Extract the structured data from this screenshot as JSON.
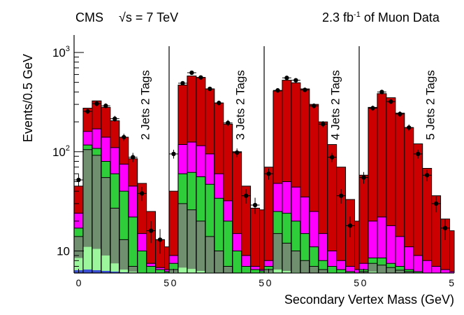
{
  "header": {
    "experiment": "CMS",
    "energy": "√s = 7 TeV",
    "lumi_value": "2.3 fb",
    "lumi_exp": "-1",
    "lumi_rest": " of Muon Data"
  },
  "chart_data": {
    "type": "stacked-histogram",
    "xlabel": "Secondary Vertex Mass (GeV)",
    "ylabel": "Events/0.5 GeV",
    "yscale": "log",
    "ylim": [
      6,
      1500
    ],
    "y_ticks": [
      {
        "value": 10,
        "base": "10",
        "exp": ""
      },
      {
        "value": 100,
        "base": "10",
        "exp": "2"
      },
      {
        "value": 1000,
        "base": "10",
        "exp": "3"
      }
    ],
    "x_range": [
      -0.25,
      5
    ],
    "x_tick_labels": [
      "0",
      "5"
    ],
    "bin_width": 0.5,
    "component_colors": [
      "#3a4fd4",
      "#9cf79c",
      "#6f8f6f",
      "#2fcd3a",
      "#ff00ff",
      "#cc0000"
    ],
    "panels": [
      {
        "label": "2 Jets 2 Tags",
        "bin_edges": [
          -0.25,
          0.25,
          0.75,
          1.25,
          1.75,
          2.25,
          2.75,
          3.25,
          3.75,
          4.25,
          4.75,
          5.0
        ],
        "stack_tops": [
          [
            6.4,
            6.5,
            6.4,
            6.3,
            6.2,
            6.1,
            6.0,
            6.0,
            6.0,
            6.0,
            6.0
          ],
          [
            8.5,
            11,
            10.5,
            9,
            7.5,
            6.5,
            6.2,
            6.0,
            6.0,
            6.0,
            6.0
          ],
          [
            14,
            105,
            92,
            55,
            27,
            13,
            7,
            6.0,
            6.0,
            6.0,
            6.0
          ],
          [
            17,
            117,
            108,
            80,
            60,
            40,
            22,
            10,
            7,
            6.5,
            6.2
          ],
          [
            24,
            160,
            170,
            140,
            110,
            75,
            45,
            15,
            7.5,
            6.8,
            6.5
          ],
          [
            45,
            275,
            325,
            280,
            205,
            140,
            85,
            48,
            25,
            13,
            11
          ]
        ],
        "data": [
          {
            "x": 0.0,
            "y": 52
          },
          {
            "x": 0.5,
            "y": 255
          },
          {
            "x": 1.0,
            "y": 305
          },
          {
            "x": 1.5,
            "y": 290
          },
          {
            "x": 2.0,
            "y": 215
          },
          {
            "x": 2.5,
            "y": 140
          },
          {
            "x": 3.0,
            "y": 88
          },
          {
            "x": 3.5,
            "y": 38
          },
          {
            "x": 4.0,
            "y": 16
          },
          {
            "x": 4.5,
            "y": 13
          }
        ]
      },
      {
        "label": "3 Jets 2 Tags",
        "bin_edges": [
          -0.25,
          0.25,
          0.75,
          1.25,
          1.75,
          2.25,
          2.75,
          3.25,
          3.75,
          4.25,
          4.75,
          5.0
        ],
        "stack_tops": [
          [
            6.0,
            6.0,
            6.0,
            6.0,
            6.0,
            6.0,
            6.0,
            6.0,
            6.0,
            6.0,
            6.0
          ],
          [
            6.1,
            6.8,
            6.6,
            6.3,
            6.1,
            6.0,
            6.0,
            6.0,
            6.0,
            6.0,
            6.0
          ],
          [
            6.5,
            30,
            26,
            20,
            14,
            10,
            7,
            6.0,
            6.0,
            6.0,
            6.0
          ],
          [
            7.5,
            60,
            62,
            56,
            47,
            34,
            20,
            10,
            7,
            6.5,
            6.3
          ],
          [
            9,
            118,
            125,
            115,
            95,
            60,
            32,
            15,
            9,
            7,
            6.5
          ],
          [
            40,
            470,
            580,
            560,
            430,
            310,
            190,
            100,
            45,
            27,
            26
          ]
        ],
        "data": [
          {
            "x": 0.0,
            "y": 95
          },
          {
            "x": 0.5,
            "y": 490
          },
          {
            "x": 1.0,
            "y": 625
          },
          {
            "x": 1.5,
            "y": 560
          },
          {
            "x": 2.0,
            "y": 430
          },
          {
            "x": 2.5,
            "y": 310
          },
          {
            "x": 3.0,
            "y": 195
          },
          {
            "x": 3.5,
            "y": 98
          },
          {
            "x": 4.0,
            "y": 36
          },
          {
            "x": 4.5,
            "y": 29
          }
        ]
      },
      {
        "label": "4 Jets 2 Tags",
        "bin_edges": [
          -0.25,
          0.25,
          0.75,
          1.25,
          1.75,
          2.25,
          2.75,
          3.25,
          3.75,
          4.25,
          4.75,
          5.0
        ],
        "stack_tops": [
          [
            6.0,
            6.0,
            6.0,
            6.0,
            6.0,
            6.0,
            6.0,
            6.0,
            6.0,
            6.0,
            6.0
          ],
          [
            6.1,
            6.5,
            6.3,
            6.1,
            6.0,
            6.0,
            6.0,
            6.0,
            6.0,
            6.0,
            6.0
          ],
          [
            6.5,
            15,
            12,
            10,
            8,
            7,
            6.5,
            6.0,
            6.0,
            6.0,
            6.0
          ],
          [
            7,
            25,
            24,
            20,
            15,
            11,
            8,
            7,
            6.5,
            6.2,
            6.0
          ],
          [
            8,
            48,
            50,
            44,
            35,
            25,
            15,
            10,
            8,
            7,
            6.5
          ],
          [
            70,
            410,
            525,
            495,
            430,
            300,
            200,
            118,
            70,
            33,
            20
          ]
        ],
        "data": [
          {
            "x": 0.0,
            "y": 60
          },
          {
            "x": 0.5,
            "y": 415
          },
          {
            "x": 1.0,
            "y": 555
          },
          {
            "x": 1.5,
            "y": 525
          },
          {
            "x": 2.0,
            "y": 420
          },
          {
            "x": 2.5,
            "y": 290
          },
          {
            "x": 3.0,
            "y": 190
          },
          {
            "x": 3.5,
            "y": 88
          },
          {
            "x": 4.0,
            "y": 36
          },
          {
            "x": 4.5,
            "y": 18
          }
        ]
      },
      {
        "label": "5 Jets 2 Tags",
        "bin_edges": [
          -0.25,
          0.25,
          0.75,
          1.25,
          1.75,
          2.25,
          2.75,
          3.25,
          3.75,
          4.25,
          4.75,
          5.0
        ],
        "stack_tops": [
          [
            6.0,
            6.0,
            6.0,
            6.0,
            6.0,
            6.0,
            6.0,
            6.0,
            6.0,
            6.0,
            6.0
          ],
          [
            6.0,
            6.2,
            6.1,
            6.0,
            6.0,
            6.0,
            6.0,
            6.0,
            6.0,
            6.0,
            6.0
          ],
          [
            6.2,
            7.5,
            7.2,
            6.8,
            6.4,
            6.2,
            6.0,
            6.0,
            6.0,
            6.0,
            6.0
          ],
          [
            6.5,
            8.5,
            8.5,
            7.5,
            7,
            6.5,
            6.2,
            6.0,
            6.0,
            6.0,
            6.0
          ],
          [
            7.5,
            20,
            22,
            18,
            14,
            11,
            9,
            8,
            7,
            6.5,
            6.2
          ],
          [
            58,
            280,
            385,
            350,
            245,
            175,
            120,
            68,
            36,
            21,
            16
          ]
        ],
        "data": [
          {
            "x": 0.0,
            "y": 55
          },
          {
            "x": 0.5,
            "y": 275
          },
          {
            "x": 1.0,
            "y": 400
          },
          {
            "x": 1.5,
            "y": 320
          },
          {
            "x": 2.0,
            "y": 240
          },
          {
            "x": 2.5,
            "y": 175
          },
          {
            "x": 3.0,
            "y": 95
          },
          {
            "x": 3.5,
            "y": 58
          },
          {
            "x": 4.0,
            "y": 30
          },
          {
            "x": 4.5,
            "y": 17
          }
        ]
      }
    ]
  }
}
